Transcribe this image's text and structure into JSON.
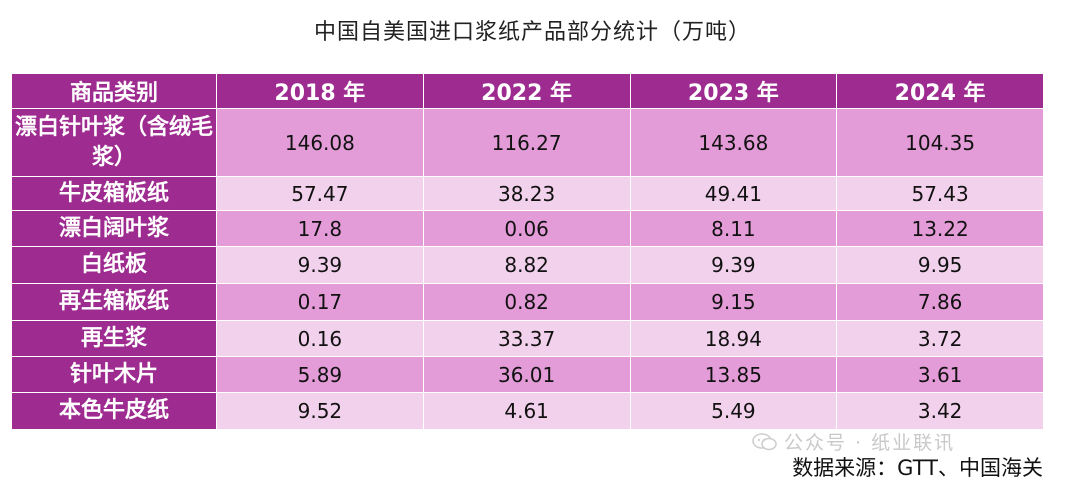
{
  "title": "中国自美国进口浆纸产品部分统计（万吨）",
  "chart_data": {
    "type": "table",
    "title": "中国自美国进口浆纸产品部分统计（万吨）",
    "header": {
      "category_label": "商品类别",
      "years": [
        "2018 年",
        "2022 年",
        "2023 年",
        "2024 年"
      ]
    },
    "rows": [
      {
        "category": "漂白针叶浆（含绒毛浆）",
        "values": [
          "146.08",
          "116.27",
          "143.68",
          "104.35"
        ]
      },
      {
        "category": "牛皮箱板纸",
        "values": [
          "57.47",
          "38.23",
          "49.41",
          "57.43"
        ]
      },
      {
        "category": "漂白阔叶浆",
        "values": [
          "17.8",
          "0.06",
          "8.11",
          "13.22"
        ]
      },
      {
        "category": "白纸板",
        "values": [
          "9.39",
          "8.82",
          "9.39",
          "9.95"
        ]
      },
      {
        "category": "再生箱板纸",
        "values": [
          "0.17",
          "0.82",
          "9.15",
          "7.86"
        ]
      },
      {
        "category": "再生浆",
        "values": [
          "0.16",
          "33.37",
          "18.94",
          "3.72"
        ]
      },
      {
        "category": "针叶木片",
        "values": [
          "5.89",
          "36.01",
          "13.85",
          "3.61"
        ]
      },
      {
        "category": "本色牛皮纸",
        "values": [
          "9.52",
          "4.61",
          "5.49",
          "3.42"
        ]
      }
    ]
  },
  "watermark": "公众号 · 纸业联讯",
  "source": "数据来源：GTT、中国海关",
  "colors": {
    "header_bg": "#9e2c90",
    "row_dark": "#e49cd9",
    "row_light": "#f2d1ec"
  }
}
